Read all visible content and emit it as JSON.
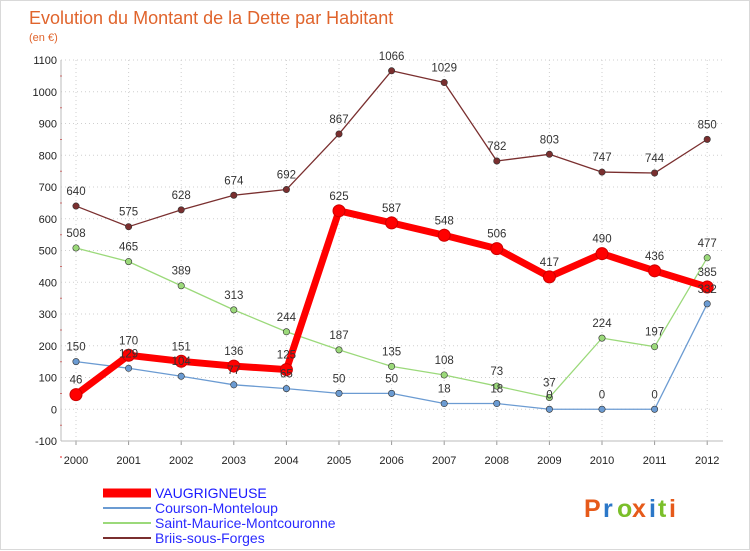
{
  "chart_data": {
    "type": "line",
    "title": "Evolution du Montant de la Dette par Habitant",
    "subtitle": "(en €)",
    "x": [
      "2000",
      "2001",
      "2002",
      "2003",
      "2004",
      "2005",
      "2006",
      "2007",
      "2008",
      "2009",
      "2010",
      "2011",
      "2012"
    ],
    "ylim": [
      -100,
      1100
    ],
    "yticks": [
      -100,
      0,
      100,
      200,
      300,
      400,
      500,
      600,
      700,
      800,
      900,
      1000,
      1100
    ],
    "grid": true,
    "legend_position": "bottom-left",
    "series": [
      {
        "name": "VAUGRIGNEUSE",
        "color": "#ff0000",
        "emphasis": true,
        "values": [
          46,
          170,
          151,
          136,
          125,
          625,
          587,
          548,
          506,
          417,
          490,
          436,
          385
        ],
        "labels": [
          "46",
          "170",
          "151",
          "136",
          "125",
          "625",
          "587",
          "548",
          "506",
          "417",
          "490",
          "436",
          "385"
        ]
      },
      {
        "name": "Courson-Monteloup",
        "color": "#6b9bd2",
        "values": [
          150,
          129,
          104,
          77,
          65,
          50,
          50,
          18,
          18,
          0,
          0,
          0,
          332
        ],
        "labels": [
          "150",
          "129",
          "104",
          "77",
          "65",
          "50",
          "50",
          "18",
          "18",
          "0",
          "0",
          "0",
          "332"
        ]
      },
      {
        "name": "Saint-Maurice-Montcouronne",
        "color": "#9bd97a",
        "values": [
          508,
          465,
          389,
          313,
          244,
          187,
          135,
          108,
          73,
          37,
          224,
          197,
          477
        ],
        "labels": [
          "508",
          "465",
          "389",
          "313",
          "244",
          "187",
          "135",
          "108",
          "73",
          "37",
          "224",
          "197",
          "477"
        ]
      },
      {
        "name": "Briis-sous-Forges",
        "color": "#7a2f2f",
        "values": [
          640,
          575,
          628,
          674,
          692,
          867,
          1066,
          1029,
          782,
          803,
          747,
          744,
          850
        ],
        "labels": [
          "640",
          "575",
          "628",
          "674",
          "692",
          "867",
          "1066",
          "1029",
          "782",
          "803",
          "747",
          "744",
          "850"
        ]
      }
    ]
  },
  "logo": {
    "text": "Proxiti"
  }
}
